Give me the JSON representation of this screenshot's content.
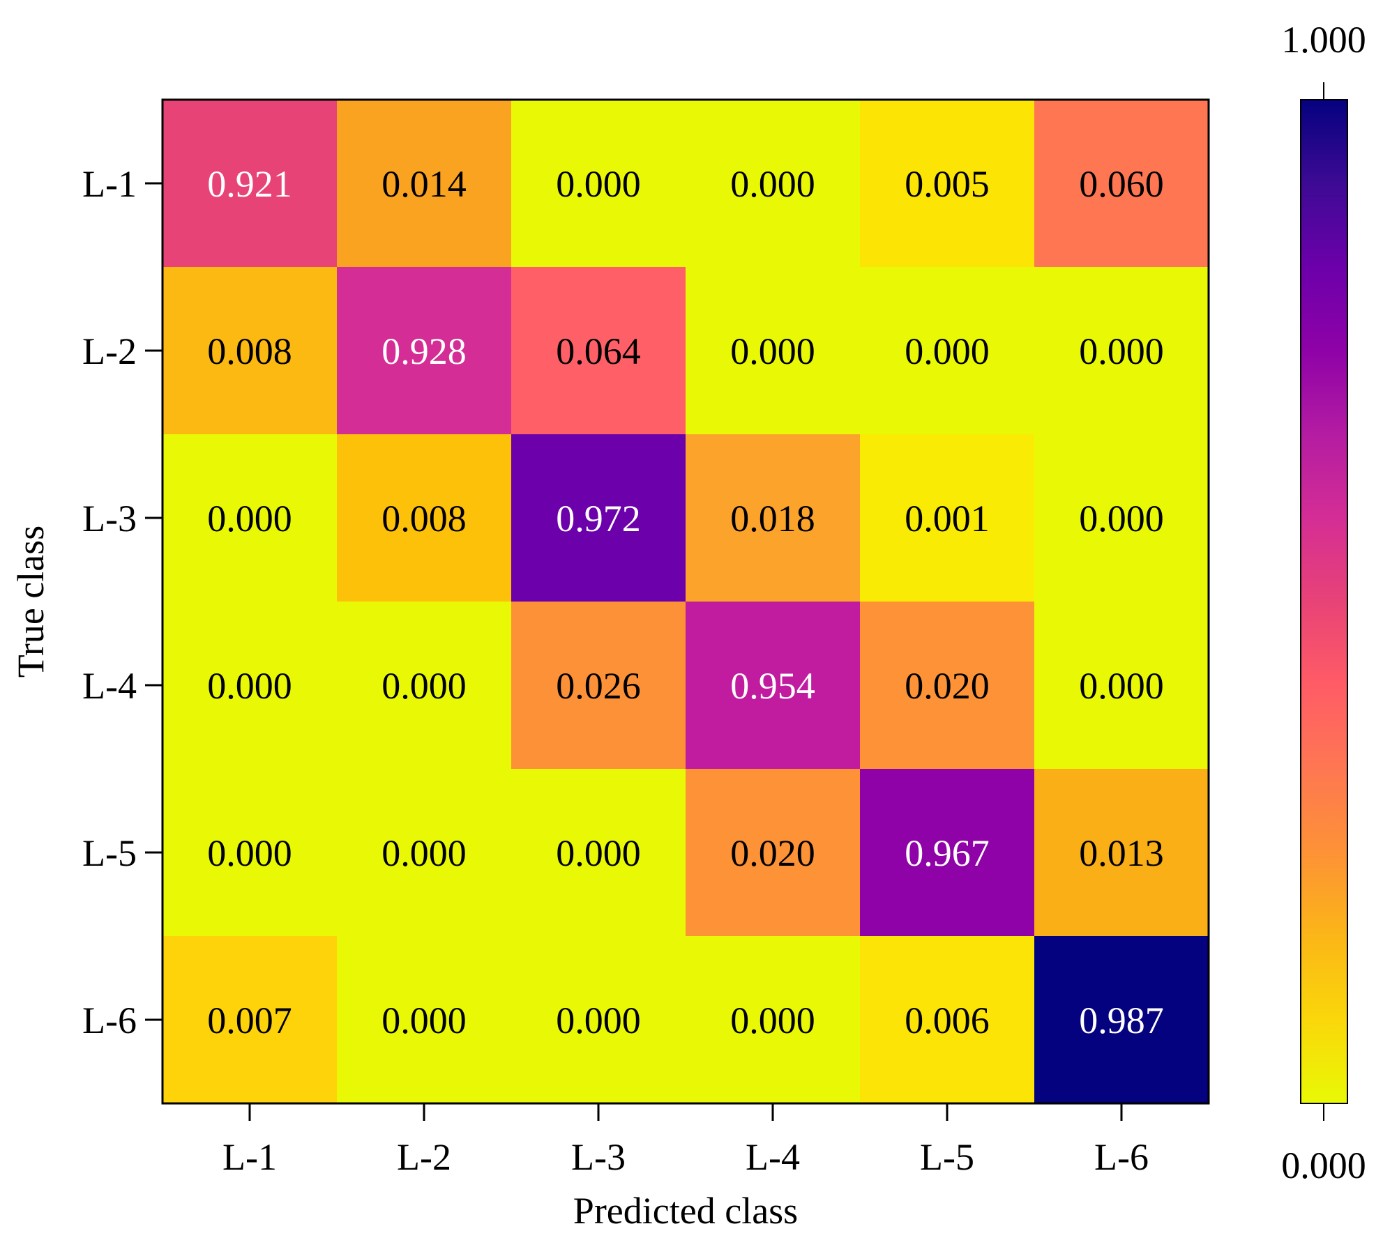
{
  "chart_data": {
    "type": "heatmap",
    "title": "",
    "xlabel": "Predicted class",
    "ylabel": "True class",
    "x_categories": [
      "L-1",
      "L-2",
      "L-3",
      "L-4",
      "L-5",
      "L-6"
    ],
    "y_categories": [
      "L-1",
      "L-2",
      "L-3",
      "L-4",
      "L-5",
      "L-6"
    ],
    "values": [
      [
        "0.921",
        "0.014",
        "0.000",
        "0.000",
        "0.005",
        "0.060"
      ],
      [
        "0.008",
        "0.928",
        "0.064",
        "0.000",
        "0.000",
        "0.000"
      ],
      [
        "0.000",
        "0.008",
        "0.972",
        "0.018",
        "0.001",
        "0.000"
      ],
      [
        "0.000",
        "0.000",
        "0.026",
        "0.954",
        "0.020",
        "0.000"
      ],
      [
        "0.000",
        "0.000",
        "0.000",
        "0.020",
        "0.967",
        "0.013"
      ],
      [
        "0.007",
        "0.000",
        "0.000",
        "0.000",
        "0.006",
        "0.987"
      ]
    ],
    "colorbar": {
      "min_label": "0.000",
      "max_label": "1.000",
      "colormap": "plasma_r"
    },
    "cell_colors": [
      [
        "#E84377",
        "#FAA321",
        "#E9F905",
        "#E9F905",
        "#FCE405",
        "#FE7752"
      ],
      [
        "#FBB912",
        "#D42D95",
        "#FF6068",
        "#E9F905",
        "#E9F905",
        "#E9F905"
      ],
      [
        "#E9F905",
        "#FDC109",
        "#6C00AA",
        "#FBA32A",
        "#F9EB03",
        "#E9F905"
      ],
      [
        "#E9F905",
        "#E9F905",
        "#FD9138",
        "#C11B9F",
        "#FD9236",
        "#E9F905"
      ],
      [
        "#E9F905",
        "#E9F905",
        "#E9F905",
        "#FD9236",
        "#8E02A7",
        "#FBAF17"
      ],
      [
        "#FED30A",
        "#E9F905",
        "#E9F905",
        "#E9F905",
        "#FCE406",
        "#05027F"
      ]
    ],
    "colorbar_stops": [
      "#E9F905",
      "#FAD70A",
      "#FBB617",
      "#FD9236",
      "#FE7752",
      "#FF5C66",
      "#E84377",
      "#D42D95",
      "#B41CA2",
      "#8E02A7",
      "#6C00AA",
      "#3D0A94",
      "#05027F"
    ]
  }
}
